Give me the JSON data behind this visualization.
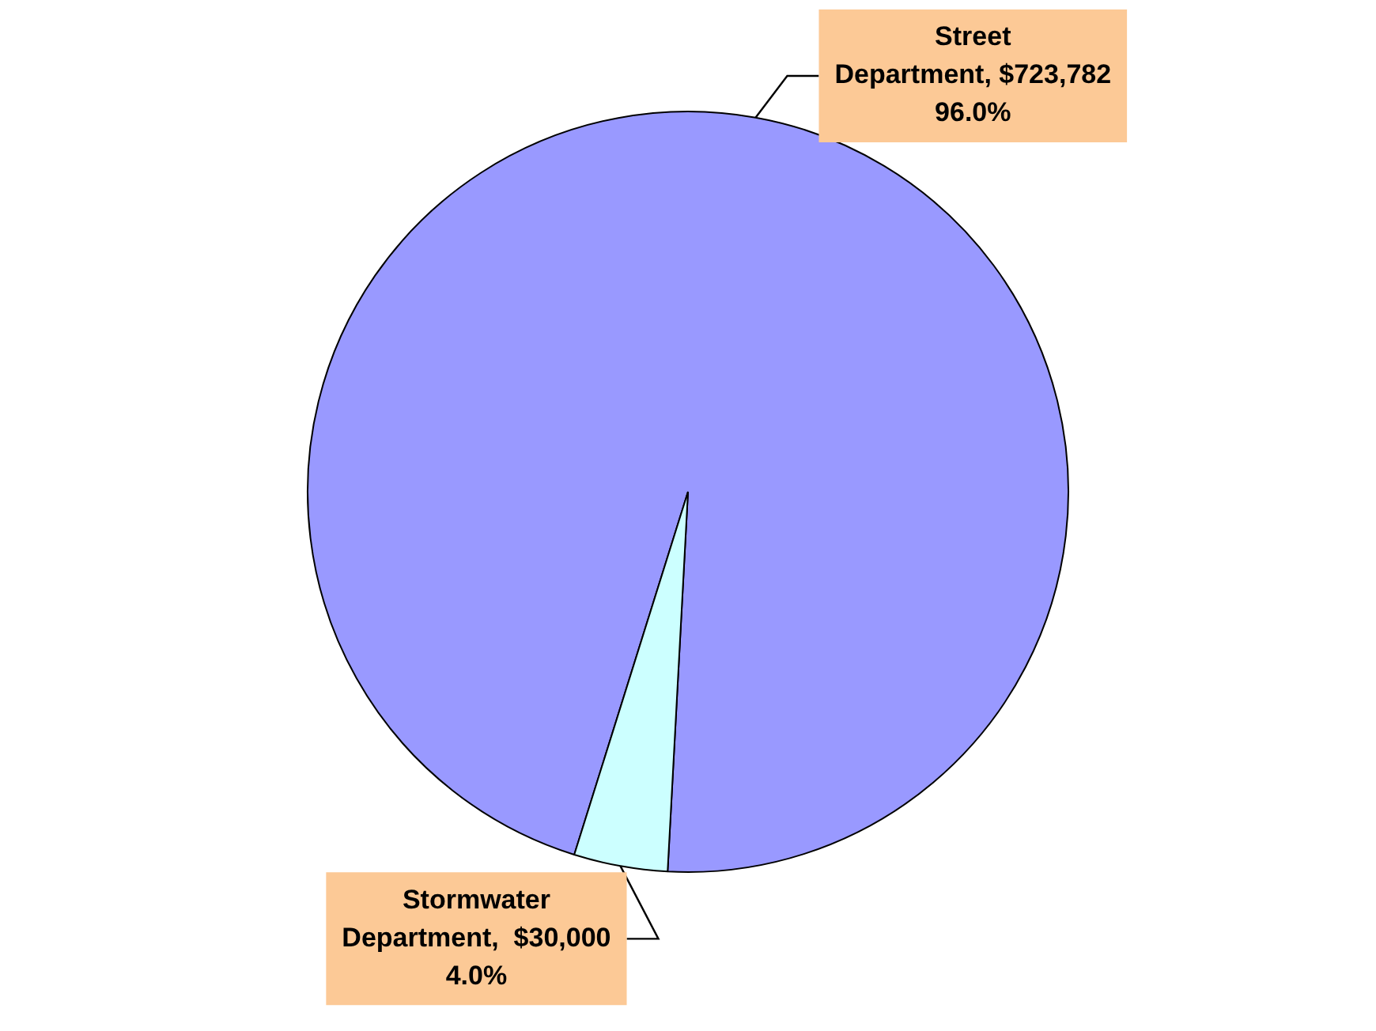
{
  "chart_data": {
    "type": "pie",
    "categories": [
      "Street Department",
      "Stormwater Department"
    ],
    "values": [
      723782,
      30000
    ],
    "value_labels": [
      "$723,782    96.0%",
      "$30,000    4.0%"
    ],
    "colors": [
      "#9999ff",
      "#ccffff"
    ]
  }
}
